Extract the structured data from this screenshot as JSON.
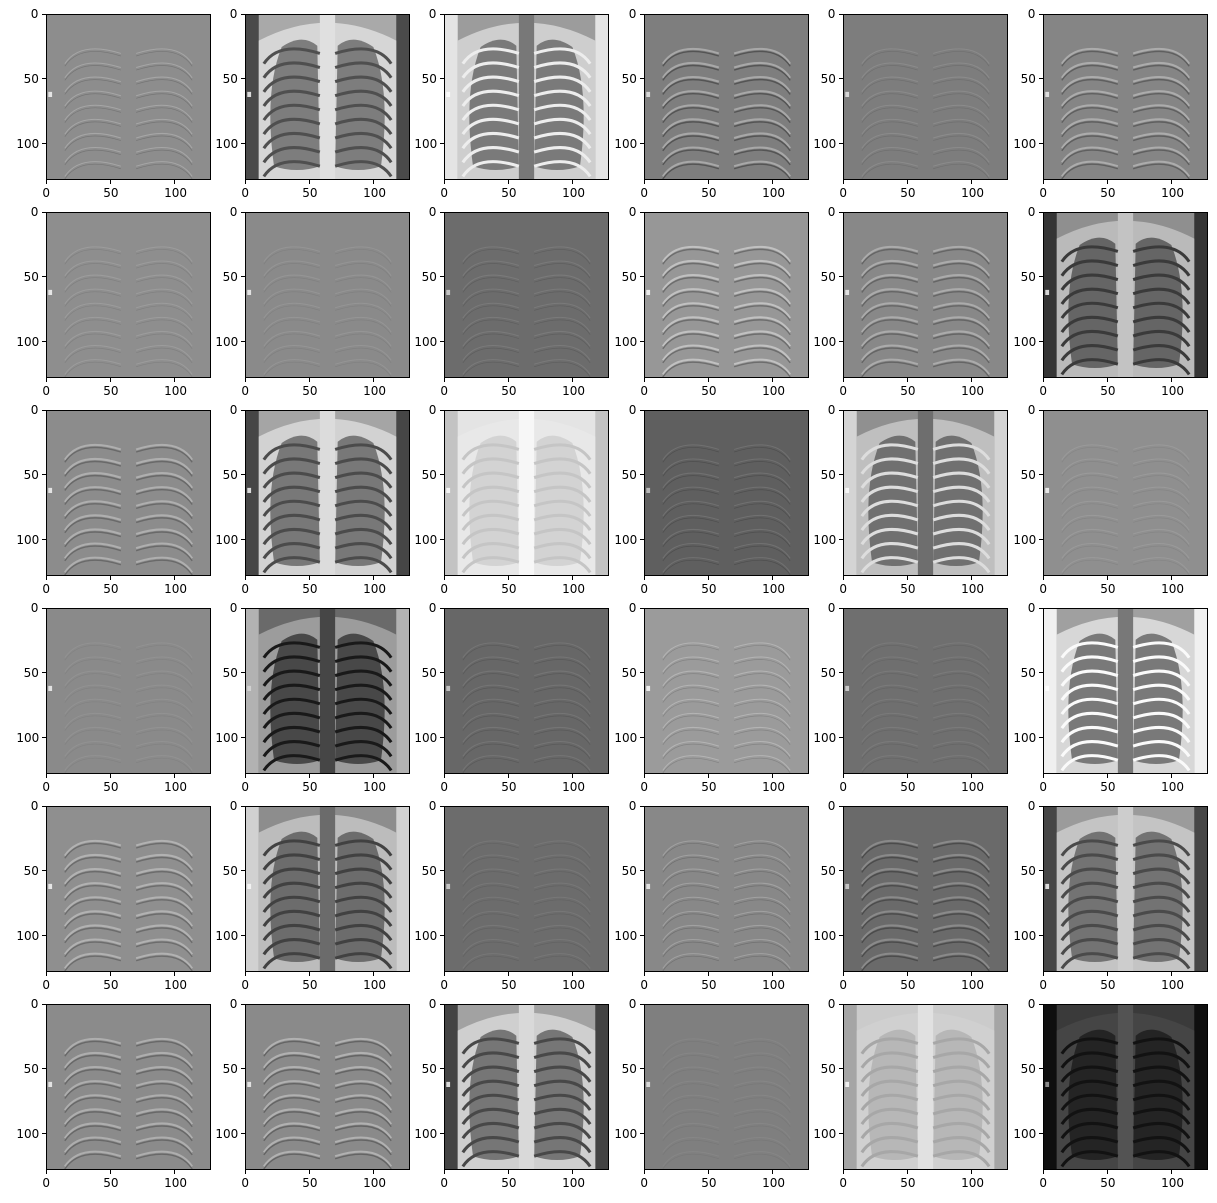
{
  "figure": {
    "rows": 6,
    "cols": 6,
    "x_ticks": [
      "0",
      "50",
      "100"
    ],
    "y_ticks": [
      "0",
      "50",
      "100"
    ],
    "x_range": [
      0,
      128
    ],
    "y_range": [
      0,
      128
    ],
    "colormap": "gray"
  },
  "panels": [
    {
      "r": 0,
      "c": 0,
      "bg": "#8d8d8d",
      "contrast": 0.35,
      "style": "edge"
    },
    {
      "r": 0,
      "c": 1,
      "bg": "#a9a9a9",
      "contrast": 1.0,
      "style": "xray",
      "edges": "dark"
    },
    {
      "r": 0,
      "c": 2,
      "bg": "#9c9c9c",
      "contrast": 0.9,
      "style": "inverted",
      "edges": "light"
    },
    {
      "r": 0,
      "c": 3,
      "bg": "#7e7e7e",
      "contrast": 0.6,
      "style": "edge-strong"
    },
    {
      "r": 0,
      "c": 4,
      "bg": "#7d7d7d",
      "contrast": 0.2,
      "style": "edge"
    },
    {
      "r": 0,
      "c": 5,
      "bg": "#858585",
      "contrast": 0.55,
      "style": "edge-strong"
    },
    {
      "r": 1,
      "c": 0,
      "bg": "#8e8e8e",
      "contrast": 0.2,
      "style": "edge"
    },
    {
      "r": 1,
      "c": 1,
      "bg": "#8a8a8a",
      "contrast": 0.15,
      "style": "edge"
    },
    {
      "r": 1,
      "c": 2,
      "bg": "#6c6c6c",
      "contrast": 0.2,
      "style": "edge"
    },
    {
      "r": 1,
      "c": 3,
      "bg": "#979797",
      "contrast": 0.6,
      "style": "edge-strong"
    },
    {
      "r": 1,
      "c": 4,
      "bg": "#888888",
      "contrast": 0.5,
      "style": "edge-strong"
    },
    {
      "r": 1,
      "c": 5,
      "bg": "#8f8f8f",
      "contrast": 0.95,
      "style": "xray",
      "edges": "dark"
    },
    {
      "r": 2,
      "c": 0,
      "bg": "#8c8c8c",
      "contrast": 0.5,
      "style": "edge-strong"
    },
    {
      "r": 2,
      "c": 1,
      "bg": "#a5a5a5",
      "contrast": 1.0,
      "style": "xray",
      "edges": "dark"
    },
    {
      "r": 2,
      "c": 2,
      "bg": "#e4e4e4",
      "contrast": 0.35,
      "style": "light"
    },
    {
      "r": 2,
      "c": 3,
      "bg": "#5f5f5f",
      "contrast": 0.25,
      "style": "edge"
    },
    {
      "r": 2,
      "c": 4,
      "bg": "#909090",
      "contrast": 0.85,
      "style": "inverted",
      "edges": "light"
    },
    {
      "r": 2,
      "c": 5,
      "bg": "#8f8f8f",
      "contrast": 0.15,
      "style": "edge"
    },
    {
      "r": 3,
      "c": 0,
      "bg": "#8a8a8a",
      "contrast": 0.12,
      "style": "edge"
    },
    {
      "r": 3,
      "c": 1,
      "bg": "#6a6a6a",
      "contrast": 0.9,
      "style": "inverted",
      "edges": "dark"
    },
    {
      "r": 3,
      "c": 2,
      "bg": "#676767",
      "contrast": 0.2,
      "style": "edge"
    },
    {
      "r": 3,
      "c": 3,
      "bg": "#9b9b9b",
      "contrast": 0.35,
      "style": "edge"
    },
    {
      "r": 3,
      "c": 4,
      "bg": "#6f6f6f",
      "contrast": 0.15,
      "style": "edge"
    },
    {
      "r": 3,
      "c": 5,
      "bg": "#a0a0a0",
      "contrast": 1.0,
      "style": "inverted",
      "edges": "light"
    },
    {
      "r": 4,
      "c": 0,
      "bg": "#8f8f8f",
      "contrast": 0.5,
      "style": "edge-strong"
    },
    {
      "r": 4,
      "c": 1,
      "bg": "#8d8d8d",
      "contrast": 0.85,
      "style": "inverted",
      "edges": "dark"
    },
    {
      "r": 4,
      "c": 2,
      "bg": "#6c6c6c",
      "contrast": 0.15,
      "style": "edge"
    },
    {
      "r": 4,
      "c": 3,
      "bg": "#888888",
      "contrast": 0.35,
      "style": "edge"
    },
    {
      "r": 4,
      "c": 4,
      "bg": "#6a6a6a",
      "contrast": 0.45,
      "style": "edge-strong"
    },
    {
      "r": 4,
      "c": 5,
      "bg": "#9b9b9b",
      "contrast": 0.9,
      "style": "xray",
      "edges": "dark"
    },
    {
      "r": 5,
      "c": 0,
      "bg": "#8b8b8b",
      "contrast": 0.5,
      "style": "edge-strong"
    },
    {
      "r": 5,
      "c": 1,
      "bg": "#8a8a8a",
      "contrast": 0.55,
      "style": "edge-strong"
    },
    {
      "r": 5,
      "c": 2,
      "bg": "#a2a2a2",
      "contrast": 1.0,
      "style": "xray",
      "edges": "dark"
    },
    {
      "r": 5,
      "c": 3,
      "bg": "#7f7f7f",
      "contrast": 0.1,
      "style": "edge"
    },
    {
      "r": 5,
      "c": 4,
      "bg": "#cbcbcb",
      "contrast": 0.4,
      "style": "light"
    },
    {
      "r": 5,
      "c": 5,
      "bg": "#3a3a3a",
      "contrast": 0.45,
      "style": "dark"
    }
  ]
}
